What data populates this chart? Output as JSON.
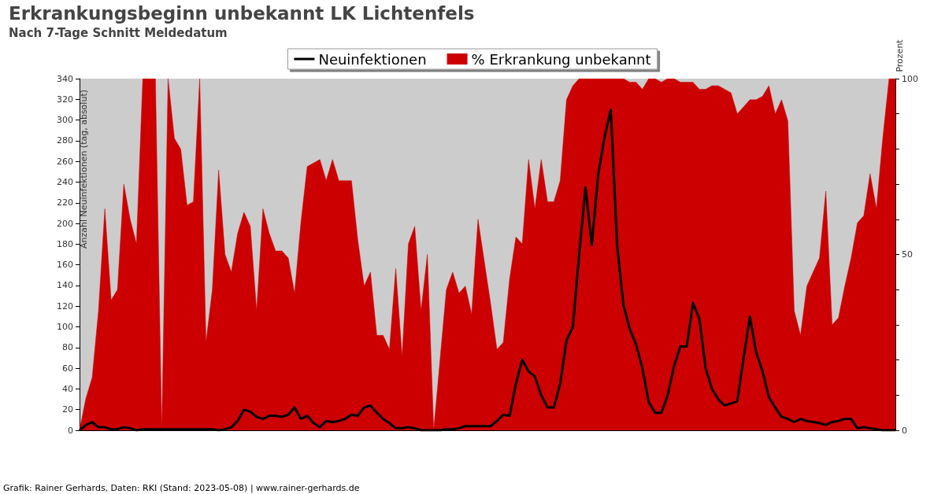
{
  "chart_data": {
    "type": "line",
    "title": "Erkrankungsbeginn unbekannt LK Lichtenfels",
    "subtitle": "Nach 7-Tage Schnitt Meldedatum",
    "ylabel": "Anzahl Neuinfektionen (tag, absolut)",
    "y2label": "Prozent",
    "annotations": [
      "Grafik: Rainer Gerhards, Daten: RKI (Stand: 2023-05-08) | www.rainer-gerhards.de"
    ],
    "categories": [
      null,
      null,
      null,
      null,
      null,
      null,
      null,
      null,
      null,
      null,
      null,
      null,
      null,
      null,
      null,
      null,
      null,
      null,
      null,
      null,
      null,
      null,
      null,
      null,
      null,
      null,
      null,
      null,
      null,
      null,
      null,
      null,
      null,
      null,
      null,
      null,
      null,
      null,
      null,
      null,
      null,
      null,
      null,
      null,
      null,
      null,
      null,
      null,
      null,
      null,
      null,
      null,
      null,
      null,
      null,
      null,
      null,
      null,
      null,
      null,
      null,
      null,
      null,
      null,
      null,
      null,
      null,
      null,
      null,
      null,
      null,
      null,
      null,
      null,
      null,
      null,
      null,
      null,
      null,
      null,
      null,
      null,
      null,
      null,
      null,
      null,
      null,
      null,
      null,
      null,
      null,
      null,
      null,
      null,
      null,
      null,
      null,
      null,
      null,
      null,
      null,
      null,
      null,
      null,
      null,
      null,
      null,
      null,
      null,
      null,
      null,
      null,
      null,
      null,
      null,
      null,
      null,
      null,
      null,
      null,
      null,
      null,
      null,
      null,
      null,
      null,
      null,
      null,
      null,
      null
    ],
    "series": [
      {
        "name": "% Erkrankung unbekannt",
        "type": "area",
        "axis": "y2",
        "color": "#cc0000",
        "values": [
          0,
          9,
          15,
          34,
          63,
          37,
          40,
          70,
          60,
          53,
          100,
          100,
          100,
          0,
          100,
          83,
          80,
          64,
          65,
          100,
          25,
          40,
          74,
          50,
          45,
          56,
          62,
          58,
          34,
          63,
          56,
          51,
          51,
          49,
          39,
          59,
          75,
          76,
          77,
          71,
          77,
          71,
          71,
          71,
          54,
          41,
          45,
          27,
          27,
          23,
          46,
          21,
          53,
          58,
          34,
          50,
          0,
          20,
          40,
          45,
          39,
          41,
          33,
          60,
          48,
          36,
          23,
          25,
          43,
          55,
          53,
          77,
          63,
          77,
          65,
          65,
          71,
          94,
          98,
          100,
          100,
          100,
          100,
          100,
          100,
          100,
          100,
          99,
          99,
          97,
          100,
          100,
          99,
          100,
          100,
          99,
          99,
          99,
          97,
          97,
          98,
          98,
          97,
          96,
          90,
          92,
          94,
          94,
          95,
          98,
          90,
          94,
          88,
          34,
          27,
          41,
          45,
          49,
          68,
          30,
          32,
          41,
          49,
          59,
          61,
          73,
          63,
          83,
          100,
          100
        ]
      },
      {
        "name": "Neuinfektionen",
        "color": "#000000",
        "values": [
          0,
          5,
          8,
          3,
          3,
          1,
          1,
          3,
          2,
          0,
          1,
          1,
          1,
          1,
          1,
          1,
          1,
          1,
          1,
          1,
          1,
          1,
          0,
          1,
          3,
          9,
          20,
          18,
          13,
          11,
          14,
          14,
          13,
          15,
          22,
          11,
          14,
          7,
          3,
          9,
          8,
          9,
          11,
          15,
          14,
          22,
          24,
          17,
          11,
          7,
          2,
          2,
          3,
          2,
          0,
          0,
          0,
          0,
          1,
          1,
          2,
          4,
          4,
          4,
          4,
          4,
          9,
          15,
          14,
          45,
          68,
          57,
          52,
          34,
          22,
          22,
          45,
          87,
          100,
          170,
          235,
          179,
          247,
          283,
          310,
          179,
          121,
          98,
          83,
          60,
          27,
          17,
          17,
          34,
          62,
          81,
          81,
          123,
          108,
          60,
          40,
          30,
          24,
          26,
          28,
          70,
          110,
          75,
          57,
          32,
          22,
          13,
          11,
          8,
          11,
          9,
          8,
          7,
          5,
          8,
          9,
          11,
          11,
          2,
          3,
          2,
          1,
          0,
          0,
          0
        ]
      }
    ],
    "ylim": [
      0,
      340
    ],
    "yticks": [
      0,
      20,
      40,
      60,
      80,
      100,
      120,
      140,
      160,
      180,
      200,
      220,
      240,
      260,
      280,
      300,
      320,
      340
    ],
    "y2lim": [
      0,
      100
    ],
    "y2ticks": [
      0,
      {
        "value": 10,
        "label": null
      },
      {
        "value": 20,
        "label": null
      },
      {
        "value": 30,
        "label": null
      },
      {
        "value": 40,
        "label": null
      },
      50,
      {
        "value": 60,
        "label": null
      },
      {
        "value": 70,
        "label": null
      },
      {
        "value": 80,
        "label": null
      },
      {
        "value": 90,
        "label": null
      },
      100
    ],
    "legend": "top",
    "marker": "none"
  }
}
